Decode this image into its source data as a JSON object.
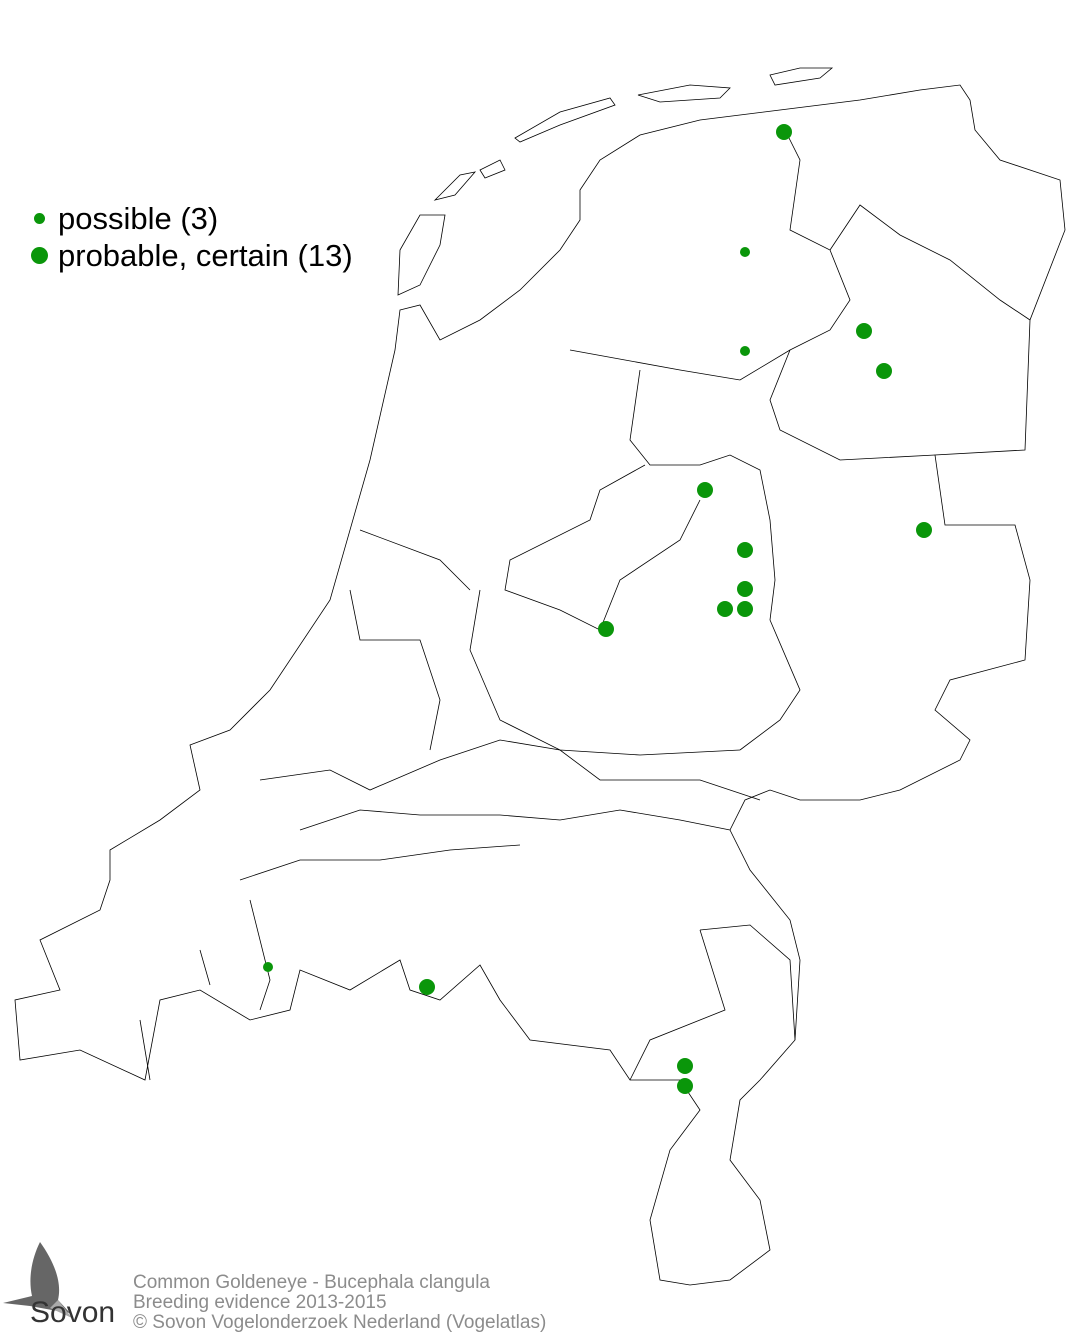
{
  "legend": {
    "items": [
      {
        "label": "possible (3)",
        "size": "small",
        "color": "#0a960a"
      },
      {
        "label": "probable, certain (13)",
        "size": "large",
        "color": "#0a960a"
      }
    ]
  },
  "footer": {
    "line1": "Common Goldeneye - Bucephala clangula",
    "line2": "Breeding evidence 2013-2015",
    "line3": "© Sovon Vogelonderzoek Nederland (Vogelatlas)"
  },
  "logo": {
    "text": "Sovon"
  },
  "colors": {
    "dot": "#0a960a",
    "outline": "#000000",
    "footer_text": "#8c8c8c"
  }
}
